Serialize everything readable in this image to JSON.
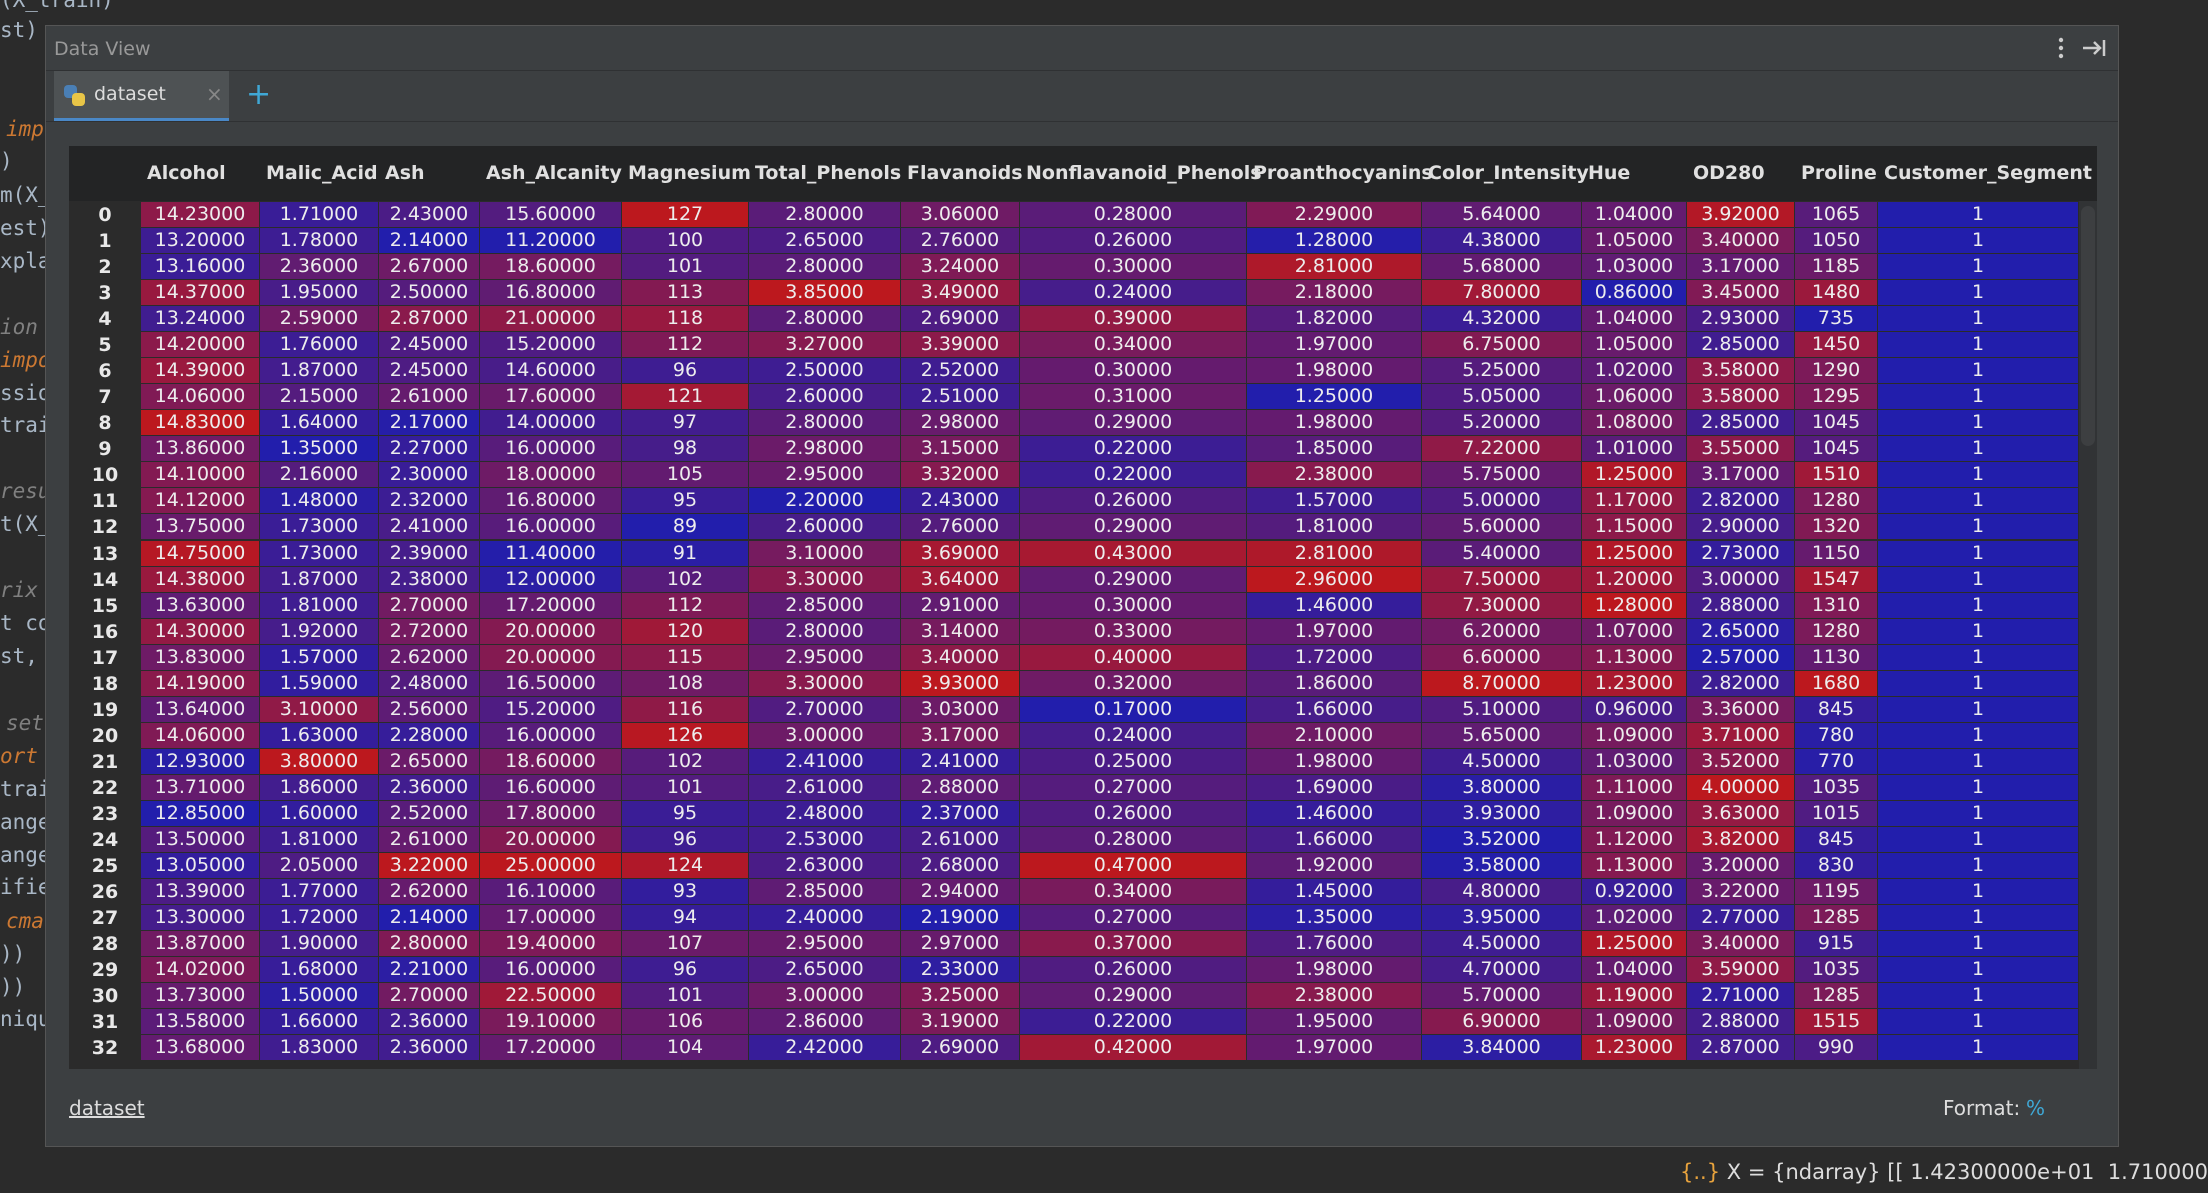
{
  "background_code": [
    "(X_train)",
    "st)",
    "imp",
    ")",
    "m(X_",
    "est)",
    "xpla",
    "ion",
    "impo",
    "ssio",
    "trai",
    "resu",
    "t(X_",
    "rix",
    "t co",
    "st, ",
    "set",
    "ort",
    "trai",
    "ange",
    "ange",
    "ifie",
    "cma",
    "))",
    "))",
    "niqu"
  ],
  "console_line": {
    "icon": "{..}",
    "text": "X = {ndarray} [[ 1.42300000e+01  1.710000"
  },
  "window": {
    "title": "Data View"
  },
  "tab": {
    "label": "dataset",
    "close": "×",
    "add": "+"
  },
  "table": {
    "columns": [
      "Alcohol",
      "Malic_Acid",
      "Ash",
      "Ash_Alcanity",
      "Magnesium",
      "Total_Phenols",
      "Flavanoids",
      "Nonflavanoid_Phenols",
      "Proanthocyanins",
      "Color_Intensity",
      "Hue",
      "OD280",
      "Proline",
      "Customer_Segment"
    ],
    "rows": [
      [
        "0",
        "14.23000",
        "1.71000",
        "2.43000",
        "15.60000",
        "127",
        "2.80000",
        "3.06000",
        "0.28000",
        "2.29000",
        "5.64000",
        "1.04000",
        "3.92000",
        "1065",
        "1"
      ],
      [
        "1",
        "13.20000",
        "1.78000",
        "2.14000",
        "11.20000",
        "100",
        "2.65000",
        "2.76000",
        "0.26000",
        "1.28000",
        "4.38000",
        "1.05000",
        "3.40000",
        "1050",
        "1"
      ],
      [
        "2",
        "13.16000",
        "2.36000",
        "2.67000",
        "18.60000",
        "101",
        "2.80000",
        "3.24000",
        "0.30000",
        "2.81000",
        "5.68000",
        "1.03000",
        "3.17000",
        "1185",
        "1"
      ],
      [
        "3",
        "14.37000",
        "1.95000",
        "2.50000",
        "16.80000",
        "113",
        "3.85000",
        "3.49000",
        "0.24000",
        "2.18000",
        "7.80000",
        "0.86000",
        "3.45000",
        "1480",
        "1"
      ],
      [
        "4",
        "13.24000",
        "2.59000",
        "2.87000",
        "21.00000",
        "118",
        "2.80000",
        "2.69000",
        "0.39000",
        "1.82000",
        "4.32000",
        "1.04000",
        "2.93000",
        "735",
        "1"
      ],
      [
        "5",
        "14.20000",
        "1.76000",
        "2.45000",
        "15.20000",
        "112",
        "3.27000",
        "3.39000",
        "0.34000",
        "1.97000",
        "6.75000",
        "1.05000",
        "2.85000",
        "1450",
        "1"
      ],
      [
        "6",
        "14.39000",
        "1.87000",
        "2.45000",
        "14.60000",
        "96",
        "2.50000",
        "2.52000",
        "0.30000",
        "1.98000",
        "5.25000",
        "1.02000",
        "3.58000",
        "1290",
        "1"
      ],
      [
        "7",
        "14.06000",
        "2.15000",
        "2.61000",
        "17.60000",
        "121",
        "2.60000",
        "2.51000",
        "0.31000",
        "1.25000",
        "5.05000",
        "1.06000",
        "3.58000",
        "1295",
        "1"
      ],
      [
        "8",
        "14.83000",
        "1.64000",
        "2.17000",
        "14.00000",
        "97",
        "2.80000",
        "2.98000",
        "0.29000",
        "1.98000",
        "5.20000",
        "1.08000",
        "2.85000",
        "1045",
        "1"
      ],
      [
        "9",
        "13.86000",
        "1.35000",
        "2.27000",
        "16.00000",
        "98",
        "2.98000",
        "3.15000",
        "0.22000",
        "1.85000",
        "7.22000",
        "1.01000",
        "3.55000",
        "1045",
        "1"
      ],
      [
        "10",
        "14.10000",
        "2.16000",
        "2.30000",
        "18.00000",
        "105",
        "2.95000",
        "3.32000",
        "0.22000",
        "2.38000",
        "5.75000",
        "1.25000",
        "3.17000",
        "1510",
        "1"
      ],
      [
        "11",
        "14.12000",
        "1.48000",
        "2.32000",
        "16.80000",
        "95",
        "2.20000",
        "2.43000",
        "0.26000",
        "1.57000",
        "5.00000",
        "1.17000",
        "2.82000",
        "1280",
        "1"
      ],
      [
        "12",
        "13.75000",
        "1.73000",
        "2.41000",
        "16.00000",
        "89",
        "2.60000",
        "2.76000",
        "0.29000",
        "1.81000",
        "5.60000",
        "1.15000",
        "2.90000",
        "1320",
        "1"
      ],
      [
        "13",
        "14.75000",
        "1.73000",
        "2.39000",
        "11.40000",
        "91",
        "3.10000",
        "3.69000",
        "0.43000",
        "2.81000",
        "5.40000",
        "1.25000",
        "2.73000",
        "1150",
        "1"
      ],
      [
        "14",
        "14.38000",
        "1.87000",
        "2.38000",
        "12.00000",
        "102",
        "3.30000",
        "3.64000",
        "0.29000",
        "2.96000",
        "7.50000",
        "1.20000",
        "3.00000",
        "1547",
        "1"
      ],
      [
        "15",
        "13.63000",
        "1.81000",
        "2.70000",
        "17.20000",
        "112",
        "2.85000",
        "2.91000",
        "0.30000",
        "1.46000",
        "7.30000",
        "1.28000",
        "2.88000",
        "1310",
        "1"
      ],
      [
        "16",
        "14.30000",
        "1.92000",
        "2.72000",
        "20.00000",
        "120",
        "2.80000",
        "3.14000",
        "0.33000",
        "1.97000",
        "6.20000",
        "1.07000",
        "2.65000",
        "1280",
        "1"
      ],
      [
        "17",
        "13.83000",
        "1.57000",
        "2.62000",
        "20.00000",
        "115",
        "2.95000",
        "3.40000",
        "0.40000",
        "1.72000",
        "6.60000",
        "1.13000",
        "2.57000",
        "1130",
        "1"
      ],
      [
        "18",
        "14.19000",
        "1.59000",
        "2.48000",
        "16.50000",
        "108",
        "3.30000",
        "3.93000",
        "0.32000",
        "1.86000",
        "8.70000",
        "1.23000",
        "2.82000",
        "1680",
        "1"
      ],
      [
        "19",
        "13.64000",
        "3.10000",
        "2.56000",
        "15.20000",
        "116",
        "2.70000",
        "3.03000",
        "0.17000",
        "1.66000",
        "5.10000",
        "0.96000",
        "3.36000",
        "845",
        "1"
      ],
      [
        "20",
        "14.06000",
        "1.63000",
        "2.28000",
        "16.00000",
        "126",
        "3.00000",
        "3.17000",
        "0.24000",
        "2.10000",
        "5.65000",
        "1.09000",
        "3.71000",
        "780",
        "1"
      ],
      [
        "21",
        "12.93000",
        "3.80000",
        "2.65000",
        "18.60000",
        "102",
        "2.41000",
        "2.41000",
        "0.25000",
        "1.98000",
        "4.50000",
        "1.03000",
        "3.52000",
        "770",
        "1"
      ],
      [
        "22",
        "13.71000",
        "1.86000",
        "2.36000",
        "16.60000",
        "101",
        "2.61000",
        "2.88000",
        "0.27000",
        "1.69000",
        "3.80000",
        "1.11000",
        "4.00000",
        "1035",
        "1"
      ],
      [
        "23",
        "12.85000",
        "1.60000",
        "2.52000",
        "17.80000",
        "95",
        "2.48000",
        "2.37000",
        "0.26000",
        "1.46000",
        "3.93000",
        "1.09000",
        "3.63000",
        "1015",
        "1"
      ],
      [
        "24",
        "13.50000",
        "1.81000",
        "2.61000",
        "20.00000",
        "96",
        "2.53000",
        "2.61000",
        "0.28000",
        "1.66000",
        "3.52000",
        "1.12000",
        "3.82000",
        "845",
        "1"
      ],
      [
        "25",
        "13.05000",
        "2.05000",
        "3.22000",
        "25.00000",
        "124",
        "2.63000",
        "2.68000",
        "0.47000",
        "1.92000",
        "3.58000",
        "1.13000",
        "3.20000",
        "830",
        "1"
      ],
      [
        "26",
        "13.39000",
        "1.77000",
        "2.62000",
        "16.10000",
        "93",
        "2.85000",
        "2.94000",
        "0.34000",
        "1.45000",
        "4.80000",
        "0.92000",
        "3.22000",
        "1195",
        "1"
      ],
      [
        "27",
        "13.30000",
        "1.72000",
        "2.14000",
        "17.00000",
        "94",
        "2.40000",
        "2.19000",
        "0.27000",
        "1.35000",
        "3.95000",
        "1.02000",
        "2.77000",
        "1285",
        "1"
      ],
      [
        "28",
        "13.87000",
        "1.90000",
        "2.80000",
        "19.40000",
        "107",
        "2.95000",
        "2.97000",
        "0.37000",
        "1.76000",
        "4.50000",
        "1.25000",
        "3.40000",
        "915",
        "1"
      ],
      [
        "29",
        "14.02000",
        "1.68000",
        "2.21000",
        "16.00000",
        "96",
        "2.65000",
        "2.33000",
        "0.26000",
        "1.98000",
        "4.70000",
        "1.04000",
        "3.59000",
        "1035",
        "1"
      ],
      [
        "30",
        "13.73000",
        "1.50000",
        "2.70000",
        "22.50000",
        "101",
        "3.00000",
        "3.25000",
        "0.29000",
        "2.38000",
        "5.70000",
        "1.19000",
        "2.71000",
        "1285",
        "1"
      ],
      [
        "31",
        "13.58000",
        "1.66000",
        "2.36000",
        "19.10000",
        "106",
        "2.86000",
        "3.19000",
        "0.22000",
        "1.95000",
        "6.90000",
        "1.09000",
        "2.88000",
        "1515",
        "1"
      ],
      [
        "32",
        "13.68000",
        "1.83000",
        "2.36000",
        "17.20000",
        "104",
        "2.42000",
        "2.69000",
        "0.42000",
        "1.97000",
        "3.84000",
        "1.23000",
        "2.87000",
        "990",
        "1"
      ]
    ]
  },
  "footer": {
    "expression": "dataset",
    "format_label": "Format:",
    "format_value": "%"
  }
}
